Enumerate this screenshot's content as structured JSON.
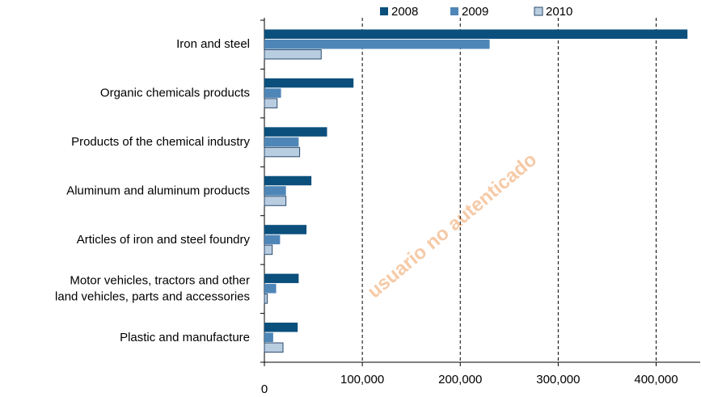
{
  "chart_data": {
    "type": "barh",
    "categories": [
      "Iron and steel",
      "Organic chemicals products",
      "Products of the chemical industry",
      "Aluminum and aluminum products",
      "Articles of iron and steel foundry",
      "Motor vehicles, tractors and other\nland vehicles, parts and accessories",
      "Plastic and manufacture"
    ],
    "series": [
      {
        "name": "2008",
        "color": "#0b4f7c",
        "values": [
          432000,
          91000,
          64000,
          48000,
          43000,
          35000,
          34000
        ]
      },
      {
        "name": "2009",
        "color": "#4f86b8",
        "values": [
          230000,
          17000,
          35000,
          22000,
          16000,
          12000,
          9000
        ]
      },
      {
        "name": "2010",
        "color": "#b9cde1",
        "values": [
          58000,
          13000,
          36000,
          22000,
          8000,
          3000,
          19000
        ]
      }
    ],
    "xlim": [
      0,
      445000
    ],
    "xticks": [
      0,
      {
        "value": 100000,
        "label": "100,000"
      },
      {
        "value": 200000,
        "label": "200,000"
      },
      {
        "value": 300000,
        "label": "300,000"
      },
      {
        "value": 400000,
        "label": "400,000"
      }
    ],
    "grid": true,
    "legend": "top",
    "watermark": "usuario no autenticado"
  }
}
